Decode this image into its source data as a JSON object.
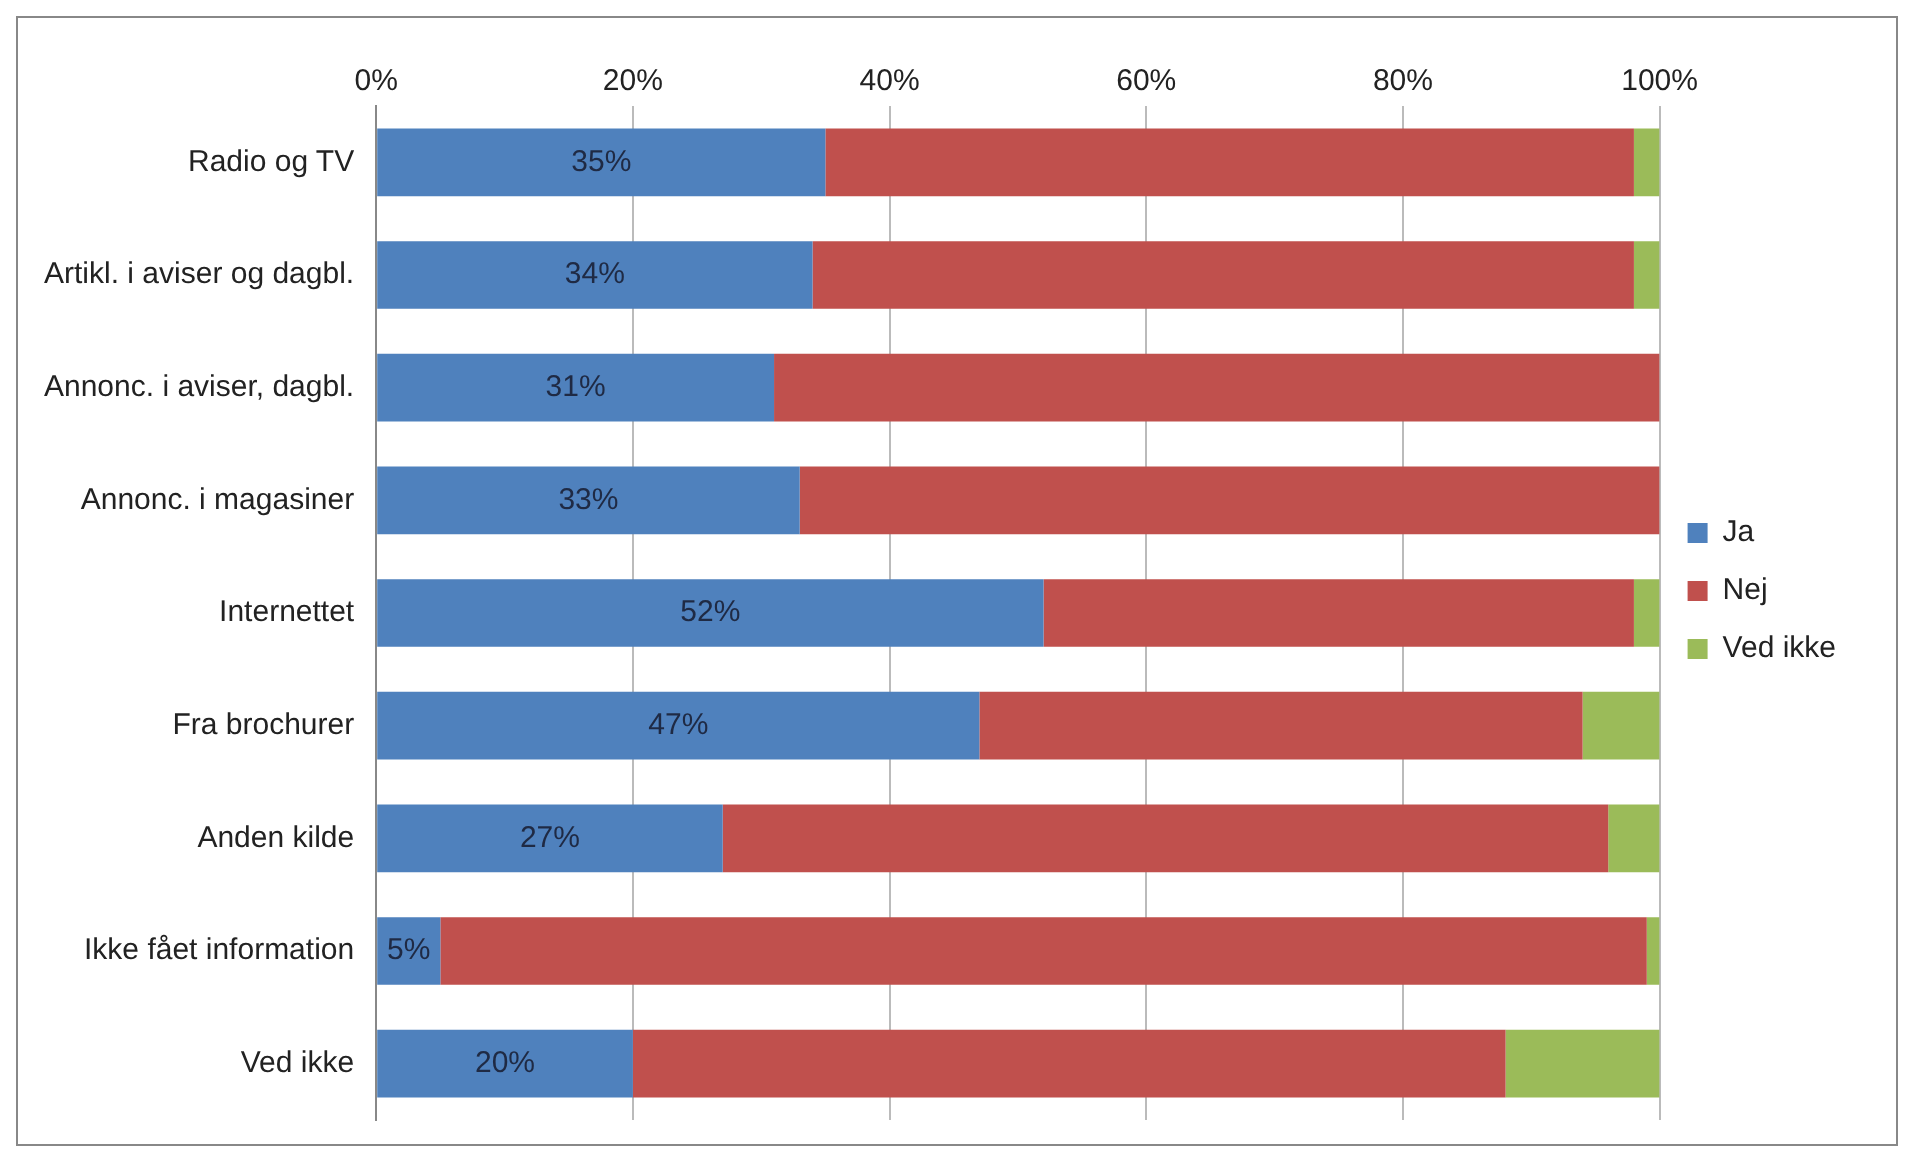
{
  "chart_data": {
    "type": "bar",
    "orientation": "horizontal",
    "stacked": true,
    "categories": [
      "Radio og TV",
      "Artikl. i aviser og dagbl.",
      "Annonc. i aviser, dagbl.",
      "Annonc. i magasiner",
      "Internettet",
      "Fra brochurer",
      "Anden kilde",
      "Ikke fået information",
      "Ved ikke"
    ],
    "series": [
      {
        "name": "Ja",
        "color": "#4f81bd",
        "values": [
          35,
          34,
          31,
          33,
          52,
          47,
          27,
          5,
          20
        ],
        "value_labels": [
          "35%",
          "34%",
          "31%",
          "33%",
          "52%",
          "47%",
          "27%",
          "5%",
          "20%"
        ]
      },
      {
        "name": "Nej",
        "color": "#c0504d",
        "values": [
          63,
          64,
          69,
          67,
          46,
          47,
          69,
          94,
          68
        ]
      },
      {
        "name": "Ved ikke",
        "color": "#9bbb59",
        "values": [
          2,
          2,
          0,
          0,
          2,
          6,
          4,
          1,
          12
        ]
      }
    ],
    "xlim": [
      0,
      100
    ],
    "xticks": [
      {
        "value": 0,
        "label": "0%"
      },
      {
        "value": 20,
        "label": "20%"
      },
      {
        "value": 40,
        "label": "40%"
      },
      {
        "value": 60,
        "label": "60%"
      },
      {
        "value": 80,
        "label": "80%"
      },
      {
        "value": 100,
        "label": "100%"
      }
    ],
    "grid": "x",
    "legend": "right"
  }
}
